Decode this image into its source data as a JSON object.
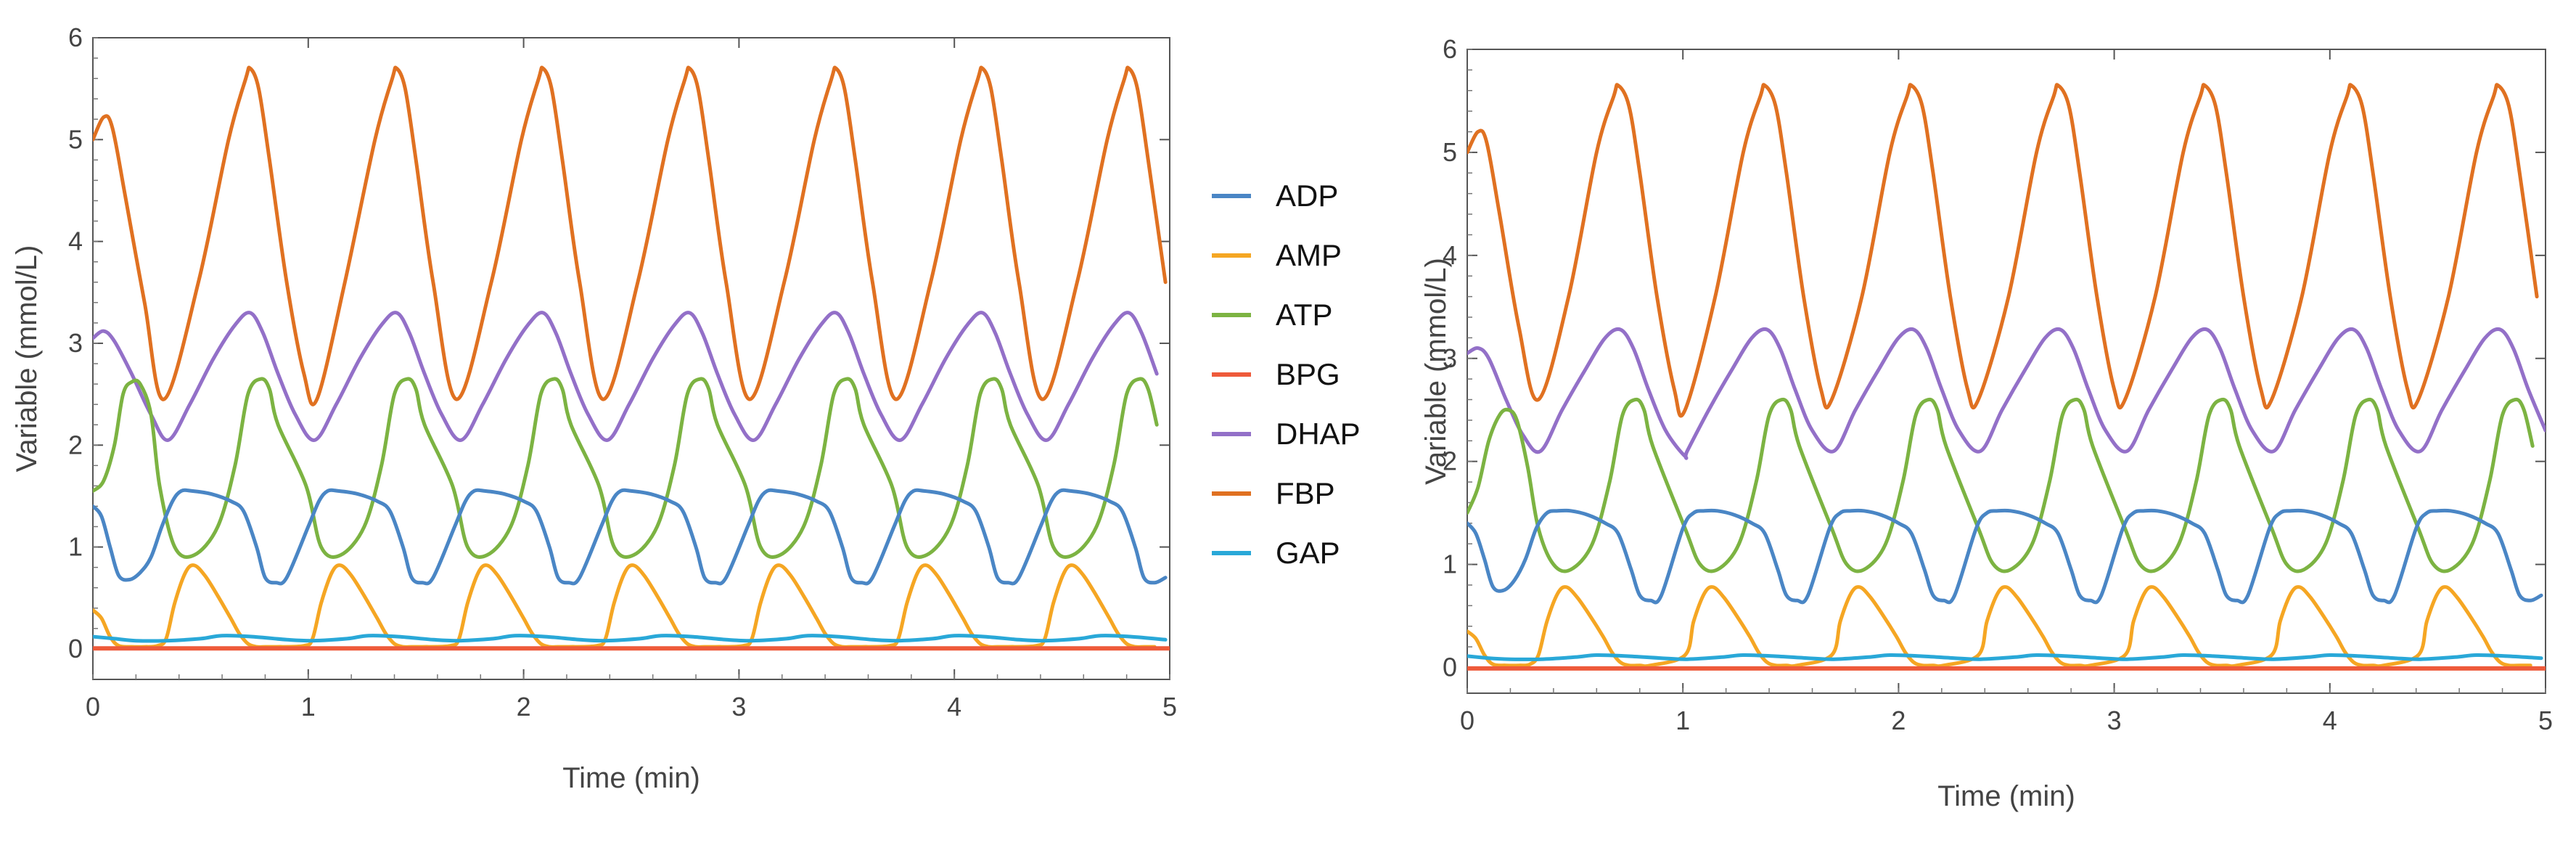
{
  "charts": [
    {
      "type": "line",
      "title": "",
      "xlabel": "Time (min)",
      "ylabel": "Variable (mmol/L)",
      "xlim": [
        0,
        5
      ],
      "ylim": [
        -0.3,
        6
      ],
      "xticks": [
        "0",
        "1",
        "2",
        "3",
        "4",
        "5"
      ],
      "yticks": [
        "0",
        "1",
        "2",
        "3",
        "4",
        "5",
        "6"
      ],
      "grid": false,
      "series": [
        {
          "name": "FBP",
          "color": "#E07121",
          "period": 0.68,
          "x": [
            0,
            0.05,
            0.09,
            0.15,
            0.24,
            0.33,
            0.49,
            0.63,
            0.71,
            0.73,
            0.77,
            0.82,
            0.9,
            0.98,
            1.04
          ],
          "y": [
            5.0,
            5.22,
            5.12,
            4.45,
            3.4,
            2.45,
            3.6,
            5.0,
            5.6,
            5.7,
            5.5,
            4.8,
            3.6,
            2.7,
            2.45
          ]
        },
        {
          "name": "DHAP",
          "color": "#9370C8",
          "period": 0.68,
          "x": [
            0,
            0.05,
            0.1,
            0.18,
            0.27,
            0.35,
            0.45,
            0.56,
            0.66,
            0.73,
            0.79,
            0.86,
            0.94,
            1.03
          ],
          "y": [
            3.05,
            3.12,
            3.02,
            2.7,
            2.3,
            2.05,
            2.4,
            2.85,
            3.18,
            3.3,
            3.1,
            2.7,
            2.3,
            2.05
          ]
        },
        {
          "name": "ATP",
          "color": "#7CB342",
          "period": 0.68,
          "x": [
            0,
            0.05,
            0.1,
            0.14,
            0.18,
            0.22,
            0.27,
            0.31,
            0.38,
            0.47,
            0.58,
            0.66,
            0.72,
            0.78,
            0.82,
            0.86
          ],
          "y": [
            1.55,
            1.65,
            2.0,
            2.5,
            2.62,
            2.6,
            2.3,
            1.6,
            1.0,
            0.92,
            1.2,
            1.8,
            2.5,
            2.65,
            2.55,
            2.2
          ]
        },
        {
          "name": "ADP",
          "color": "#4A86C5",
          "period": 0.68,
          "x": [
            0,
            0.04,
            0.08,
            0.12,
            0.17,
            0.22,
            0.27,
            0.32,
            0.37,
            0.41,
            0.46,
            0.55,
            0.64,
            0.7,
            0.76,
            0.8,
            0.85,
            0.9
          ],
          "y": [
            1.4,
            1.3,
            1.0,
            0.72,
            0.68,
            0.75,
            0.9,
            1.2,
            1.45,
            1.55,
            1.55,
            1.52,
            1.45,
            1.35,
            1.0,
            0.7,
            0.65,
            0.7
          ]
        },
        {
          "name": "AMP",
          "color": "#F5A623",
          "period": 0.68,
          "x": [
            0,
            0.04,
            0.08,
            0.12,
            0.18,
            0.24,
            0.3,
            0.34,
            0.38,
            0.43,
            0.47,
            0.52,
            0.58,
            0.64,
            0.68,
            0.72,
            0.76,
            0.8,
            0.85
          ],
          "y": [
            0.38,
            0.3,
            0.12,
            0.03,
            0.02,
            0.02,
            0.03,
            0.1,
            0.45,
            0.75,
            0.82,
            0.72,
            0.52,
            0.3,
            0.15,
            0.05,
            0.02,
            0.02,
            0.02
          ]
        },
        {
          "name": "BPG",
          "color": "#EE5A3A",
          "period": 0,
          "x": [
            0,
            5
          ],
          "y": [
            0.005,
            0.005
          ]
        },
        {
          "name": "GAP",
          "color": "#29A8D8",
          "period": 0.68,
          "x": [
            0,
            0.1,
            0.2,
            0.34,
            0.5,
            0.6,
            0.74,
            0.9,
            1.02
          ],
          "y": [
            0.12,
            0.1,
            0.08,
            0.08,
            0.1,
            0.13,
            0.12,
            0.09,
            0.08
          ]
        }
      ]
    },
    {
      "type": "line",
      "title": "",
      "xlabel": "Time (min)",
      "ylabel": "Variable (mmol/L)",
      "xlim": [
        0,
        5
      ],
      "ylim": [
        -0.25,
        6
      ],
      "xticks": [
        "0",
        "1",
        "2",
        "3",
        "4",
        "5"
      ],
      "yticks": [
        "0",
        "1",
        "2",
        "3",
        "4",
        "5",
        "6"
      ],
      "grid": false,
      "series": [
        {
          "name": "FBP",
          "color": "#E07121",
          "period": 0.68,
          "x": [
            0,
            0.05,
            0.09,
            0.15,
            0.24,
            0.33,
            0.47,
            0.6,
            0.68,
            0.7,
            0.75,
            0.8,
            0.88,
            0.96,
            1.01
          ],
          "y": [
            5.0,
            5.2,
            5.1,
            4.4,
            3.3,
            2.6,
            3.6,
            5.0,
            5.55,
            5.65,
            5.45,
            4.8,
            3.6,
            2.7,
            2.5
          ]
        },
        {
          "name": "DHAP",
          "color": "#9370C8",
          "period": 0.68,
          "x": [
            0,
            0.05,
            0.1,
            0.18,
            0.26,
            0.34,
            0.44,
            0.55,
            0.64,
            0.71,
            0.77,
            0.84,
            0.92,
            1.01
          ],
          "y": [
            3.05,
            3.1,
            3.0,
            2.6,
            2.25,
            2.1,
            2.5,
            2.9,
            3.2,
            3.28,
            3.1,
            2.7,
            2.3,
            2.05
          ]
        },
        {
          "name": "ATP",
          "color": "#7CB342",
          "period": 0.68,
          "x": [
            0,
            0.05,
            0.1,
            0.15,
            0.19,
            0.23,
            0.28,
            0.33,
            0.4,
            0.48,
            0.58,
            0.66,
            0.72,
            0.78,
            0.82,
            0.86
          ],
          "y": [
            1.5,
            1.75,
            2.2,
            2.45,
            2.5,
            2.4,
            1.95,
            1.35,
            1.0,
            0.95,
            1.2,
            1.8,
            2.45,
            2.6,
            2.5,
            2.15
          ]
        },
        {
          "name": "ADP",
          "color": "#4A86C5",
          "period": 0.68,
          "x": [
            0,
            0.04,
            0.08,
            0.12,
            0.17,
            0.22,
            0.27,
            0.32,
            0.37,
            0.42,
            0.48,
            0.56,
            0.64,
            0.7,
            0.76,
            0.8,
            0.85,
            0.9
          ],
          "y": [
            1.4,
            1.3,
            1.05,
            0.78,
            0.75,
            0.85,
            1.05,
            1.35,
            1.5,
            1.52,
            1.52,
            1.48,
            1.4,
            1.3,
            0.95,
            0.7,
            0.65,
            0.7
          ]
        },
        {
          "name": "AMP",
          "color": "#F5A623",
          "period": 0.68,
          "x": [
            0,
            0.04,
            0.08,
            0.12,
            0.18,
            0.24,
            0.29,
            0.33,
            0.37,
            0.42,
            0.46,
            0.51,
            0.57,
            0.63,
            0.67,
            0.71,
            0.75,
            0.8,
            0.85
          ],
          "y": [
            0.35,
            0.28,
            0.12,
            0.03,
            0.02,
            0.02,
            0.03,
            0.12,
            0.45,
            0.72,
            0.78,
            0.68,
            0.5,
            0.3,
            0.15,
            0.05,
            0.02,
            0.02,
            0.02
          ]
        },
        {
          "name": "BPG",
          "color": "#EE5A3A",
          "period": 0,
          "x": [
            0,
            5
          ],
          "y": [
            -0.01,
            -0.01
          ]
        },
        {
          "name": "GAP",
          "color": "#29A8D8",
          "period": 0.68,
          "x": [
            0,
            0.1,
            0.2,
            0.34,
            0.5,
            0.6,
            0.74,
            0.9,
            1.02
          ],
          "y": [
            0.11,
            0.09,
            0.08,
            0.08,
            0.1,
            0.12,
            0.11,
            0.09,
            0.08
          ]
        }
      ]
    }
  ],
  "legend": {
    "placement": "between-charts",
    "items": [
      {
        "label": "ADP",
        "color": "#4A86C5"
      },
      {
        "label": "AMP",
        "color": "#F5A623"
      },
      {
        "label": "ATP",
        "color": "#7CB342"
      },
      {
        "label": "BPG",
        "color": "#EE5A3A"
      },
      {
        "label": "DHAP",
        "color": "#9370C8"
      },
      {
        "label": "FBP",
        "color": "#E07121"
      },
      {
        "label": "GAP",
        "color": "#29A8D8"
      }
    ]
  }
}
